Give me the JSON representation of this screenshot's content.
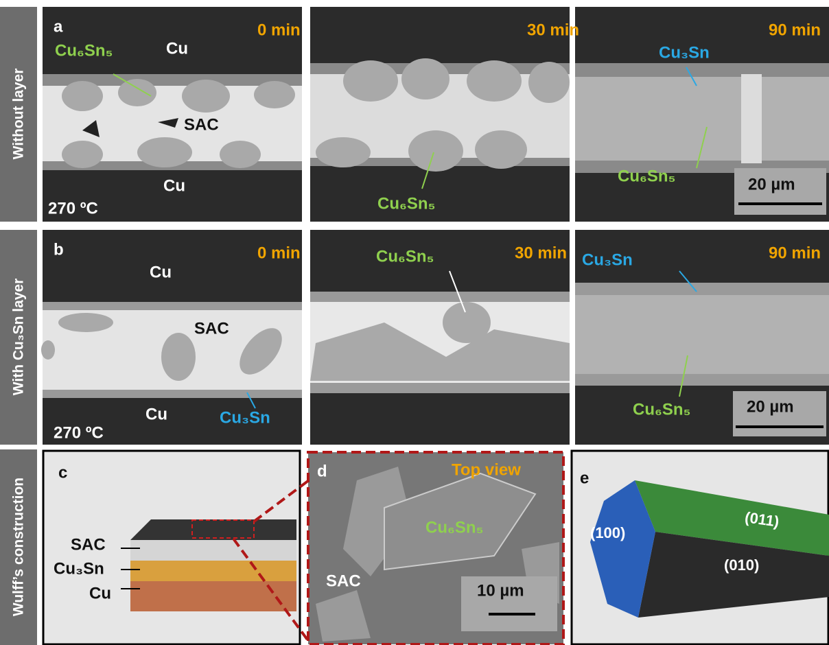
{
  "row_labels": [
    "Without layer",
    "With Cu₃Sn layer",
    "Wulff’s construction"
  ],
  "panel_a": {
    "letter": "a",
    "times": [
      "0 min",
      "30 min",
      "90 min"
    ],
    "cu_top": "Cu",
    "imc_left": "Cu₆Sn₅",
    "solder": "SAC",
    "cu_bottom": "Cu",
    "temperature": "270 ºC",
    "imc_middle": "Cu₆Sn₅",
    "cu3sn_right": "Cu₃Sn",
    "imc_right": "Cu₆Sn₅",
    "scale_bar": "20 µm"
  },
  "panel_b": {
    "letter": "b",
    "times": [
      "0 min",
      "30 min",
      "90 min"
    ],
    "cu_top": "Cu",
    "solder": "SAC",
    "cu_bottom": "Cu",
    "cu3sn_left": "Cu₃Sn",
    "temperature": "270 ºC",
    "imc_middle": "Cu₆Sn₅",
    "cu3sn_right": "Cu₃Sn",
    "imc_right": "Cu₆Sn₅",
    "scale_bar": "20 µm"
  },
  "panel_c": {
    "letter": "c",
    "layers": [
      "SAC",
      "Cu₃Sn",
      "Cu"
    ]
  },
  "panel_d": {
    "letter": "d",
    "view": "Top view",
    "crystal": "Cu₆Sn₅",
    "solder": "SAC",
    "scale_bar": "10 µm"
  },
  "panel_e": {
    "letter": "e",
    "faces": [
      "(100)",
      "(011)",
      "(010)"
    ]
  }
}
